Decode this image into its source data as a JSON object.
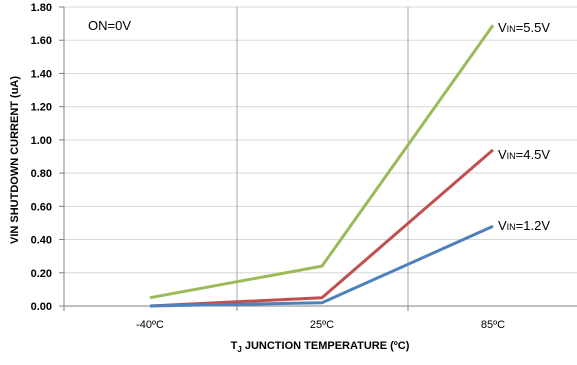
{
  "chart_data": {
    "type": "line",
    "title": "",
    "annotation": "ON=0V",
    "xlabel": "TJ JUNCTION TEMPERATURE  (ºC)",
    "xlabel_main": "T",
    "xlabel_sub": "J",
    "xlabel_rest": " JUNCTION TEMPERATURE  (ºC)",
    "ylabel": "VIN SHUTDOWN CURRENT (uA)",
    "categories": [
      "-40ºC",
      "25ºC",
      "85ºC"
    ],
    "y_ticks": [
      "0.00",
      "0.20",
      "0.40",
      "0.60",
      "0.80",
      "1.00",
      "1.20",
      "1.40",
      "1.60",
      "1.80"
    ],
    "ylim": [
      0,
      1.8
    ],
    "grid": true,
    "series": [
      {
        "name": "VIN=5.5V",
        "label_main": "V",
        "label_sub": "IN",
        "label_rest": "=5.5V",
        "values": [
          0.05,
          0.24,
          1.69
        ],
        "color": "#9BBB59"
      },
      {
        "name": "VIN=4.5V",
        "label_main": "V",
        "label_sub": "IN",
        "label_rest": "=4.5V",
        "values": [
          0.0,
          0.05,
          0.94
        ],
        "color": "#C0504D"
      },
      {
        "name": "VIN=1.2V",
        "label_main": "V",
        "label_sub": "IN",
        "label_rest": "=1.2V",
        "values": [
          0.0,
          0.02,
          0.48
        ],
        "color": "#4F81BD"
      }
    ]
  }
}
